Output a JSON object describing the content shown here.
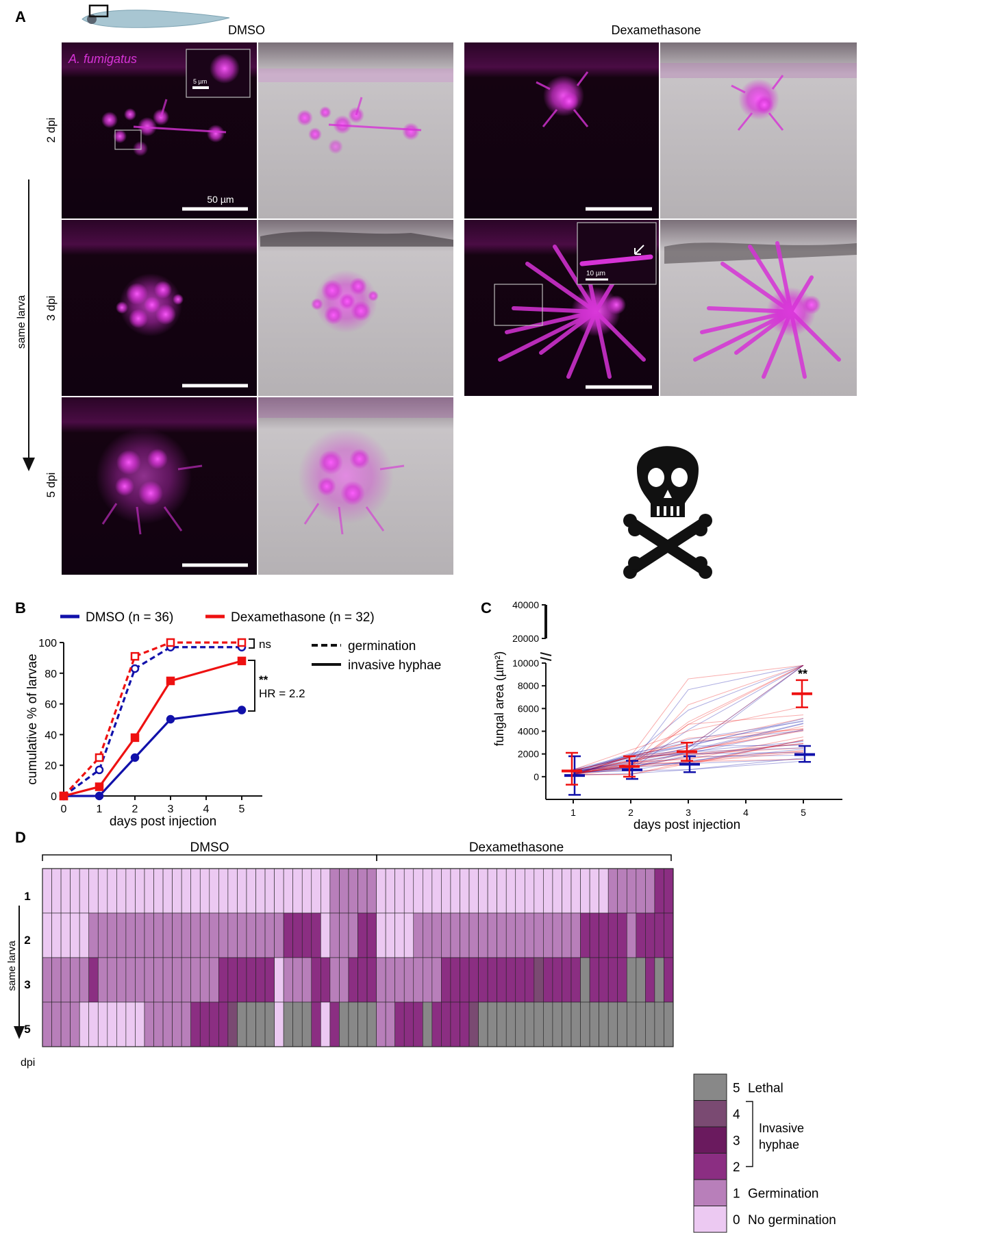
{
  "panel_a": {
    "letter": "A",
    "col_dmso": "DMSO",
    "col_dex": "Dexamethasone",
    "fungus_label": "A. fumigatus",
    "row_labels": [
      "2 dpi",
      "3 dpi",
      "5 dpi"
    ],
    "arrow_label": "same larva",
    "scale_main": "50 µm",
    "scale_inset_dmso": "5 µm",
    "scale_inset_dex": "10 µm",
    "lethal_icon": "skull-crossbones-icon",
    "colors": {
      "magenta": "#d633d6",
      "dark": "#12020f",
      "gray": "#b9b5b8"
    }
  },
  "panel_b": {
    "letter": "B",
    "legend": {
      "dmso": "DMSO (n = 36)",
      "dex": "Dexamethasone (n = 32)",
      "germination": "germination",
      "invasive": "invasive hyphae"
    },
    "annotations": {
      "ns": "ns",
      "stars": "**",
      "hr": "HR = 2.2"
    },
    "chart_data": {
      "type": "line",
      "xlabel": "days post injection",
      "ylabel": "cumulative % of larvae",
      "xlim": [
        0,
        5.6
      ],
      "ylim": [
        0,
        100
      ],
      "x_ticks": [
        0,
        1,
        2,
        3,
        4,
        5
      ],
      "y_ticks": [
        0,
        20,
        40,
        60,
        80,
        100
      ],
      "x": [
        0,
        1,
        2,
        3,
        5
      ],
      "series": [
        {
          "name": "DMSO (n = 36)",
          "measure": "germination",
          "color": "#1111aa",
          "style": "dashed",
          "marker": "open-circle",
          "values": [
            0,
            17,
            83,
            97,
            97
          ]
        },
        {
          "name": "Dexamethasone (n = 32)",
          "measure": "germination",
          "color": "#ee1111",
          "style": "dashed",
          "marker": "open-square",
          "values": [
            0,
            25,
            91,
            100,
            100
          ]
        },
        {
          "name": "DMSO (n = 36)",
          "measure": "invasive hyphae",
          "color": "#1111aa",
          "style": "solid",
          "marker": "filled-circle",
          "values": [
            0,
            0,
            25,
            50,
            56
          ]
        },
        {
          "name": "Dexamethasone (n = 32)",
          "measure": "invasive hyphae",
          "color": "#ee1111",
          "style": "solid",
          "marker": "filled-square",
          "values": [
            0,
            6,
            38,
            75,
            88
          ]
        }
      ]
    }
  },
  "panel_c": {
    "letter": "C",
    "stars": "**",
    "chart_data": {
      "type": "scatter",
      "xlabel": "days post injection",
      "ylabel": "fungal area (µm²)",
      "x_ticks": [
        1,
        2,
        3,
        4,
        5
      ],
      "y_ticks_lower": [
        0,
        2000,
        4000,
        6000,
        8000,
        10000
      ],
      "y_ticks_upper": [
        20000,
        40000
      ],
      "ylim_lower": [
        -2000,
        10000
      ],
      "ylim_upper": [
        10000,
        40000
      ],
      "axis_break": true,
      "series": [
        {
          "name": "DMSO",
          "color": "#1111aa",
          "x": [
            1,
            2,
            3,
            5
          ],
          "mean": [
            100,
            600,
            1100,
            1950
          ],
          "sd_low": [
            -1600,
            -200,
            400,
            1300
          ],
          "sd_high": [
            1800,
            1400,
            1800,
            2700
          ]
        },
        {
          "name": "Dexamethasone",
          "color": "#ee1111",
          "x": [
            1,
            2,
            3,
            5
          ],
          "mean": [
            500,
            900,
            2200,
            7300
          ],
          "sd_low": [
            -700,
            0,
            1400,
            6100
          ],
          "sd_high": [
            2100,
            1800,
            3000,
            8500
          ]
        }
      ]
    }
  },
  "panel_d": {
    "letter": "D",
    "group_dmso": "DMSO",
    "group_dex": "Dexamethasone",
    "row_labels": [
      "1",
      "2",
      "3",
      "5"
    ],
    "arrow_label": "same larva",
    "axis_label": "dpi",
    "bracket_label": "Invasive\nhyphae",
    "chart_data": {
      "type": "heatmap",
      "rows": [
        "1",
        "2",
        "3",
        "5"
      ],
      "groups": [
        {
          "name": "DMSO",
          "count": 36
        },
        {
          "name": "Dexamethasone",
          "count": 32
        }
      ],
      "scale": [
        {
          "value": 5,
          "label": "Lethal",
          "color": "#888888"
        },
        {
          "value": 4,
          "label": "",
          "color": "#7a4a72"
        },
        {
          "value": 3,
          "label": "",
          "color": "#6a1a5e"
        },
        {
          "value": 2,
          "label": "",
          "color": "#8b2e82"
        },
        {
          "value": 1,
          "label": "Germination",
          "color": "#b87fba"
        },
        {
          "value": 0,
          "label": "No germination",
          "color": "#ecc9f2"
        }
      ],
      "values": [
        [
          0,
          0,
          0,
          0,
          0,
          0,
          0,
          0,
          0,
          0,
          0,
          0,
          0,
          0,
          0,
          0,
          0,
          0,
          0,
          0,
          0,
          0,
          0,
          0,
          0,
          0,
          0,
          0,
          0,
          0,
          0,
          1,
          1,
          1,
          1,
          1,
          0,
          0,
          0,
          0,
          0,
          0,
          0,
          0,
          0,
          0,
          0,
          0,
          0,
          0,
          0,
          0,
          0,
          0,
          0,
          0,
          0,
          0,
          0,
          0,
          0,
          1,
          1,
          1,
          1,
          1,
          2,
          2
        ],
        [
          0,
          0,
          0,
          0,
          0,
          1,
          1,
          1,
          1,
          1,
          1,
          1,
          1,
          1,
          1,
          1,
          1,
          1,
          1,
          1,
          1,
          1,
          1,
          1,
          1,
          1,
          2,
          2,
          2,
          2,
          0,
          1,
          1,
          1,
          2,
          2,
          0,
          0,
          0,
          0,
          1,
          1,
          1,
          1,
          1,
          1,
          1,
          1,
          1,
          1,
          1,
          1,
          1,
          1,
          1,
          1,
          1,
          1,
          2,
          2,
          2,
          2,
          2,
          1,
          2,
          2,
          2,
          2
        ],
        [
          1,
          1,
          1,
          1,
          1,
          2,
          1,
          1,
          1,
          1,
          1,
          1,
          1,
          1,
          1,
          1,
          1,
          1,
          1,
          2,
          2,
          2,
          2,
          2,
          2,
          0,
          1,
          1,
          1,
          2,
          2,
          1,
          1,
          2,
          2,
          2,
          1,
          1,
          1,
          1,
          1,
          1,
          1,
          2,
          2,
          2,
          2,
          2,
          2,
          2,
          2,
          2,
          2,
          4,
          2,
          2,
          2,
          2,
          5,
          2,
          2,
          2,
          2,
          5,
          5,
          2,
          5,
          2
        ],
        [
          1,
          1,
          1,
          1,
          0,
          0,
          0,
          0,
          0,
          0,
          0,
          1,
          1,
          1,
          1,
          1,
          2,
          2,
          2,
          2,
          4,
          5,
          5,
          5,
          5,
          0,
          5,
          5,
          5,
          2,
          0,
          2,
          5,
          5,
          5,
          5,
          1,
          1,
          2,
          2,
          2,
          5,
          2,
          2,
          2,
          2,
          4,
          5,
          5,
          5,
          5,
          5,
          5,
          5,
          5,
          5,
          5,
          5,
          5,
          5,
          5,
          5,
          5,
          5,
          5,
          5,
          5,
          5
        ]
      ]
    }
  }
}
